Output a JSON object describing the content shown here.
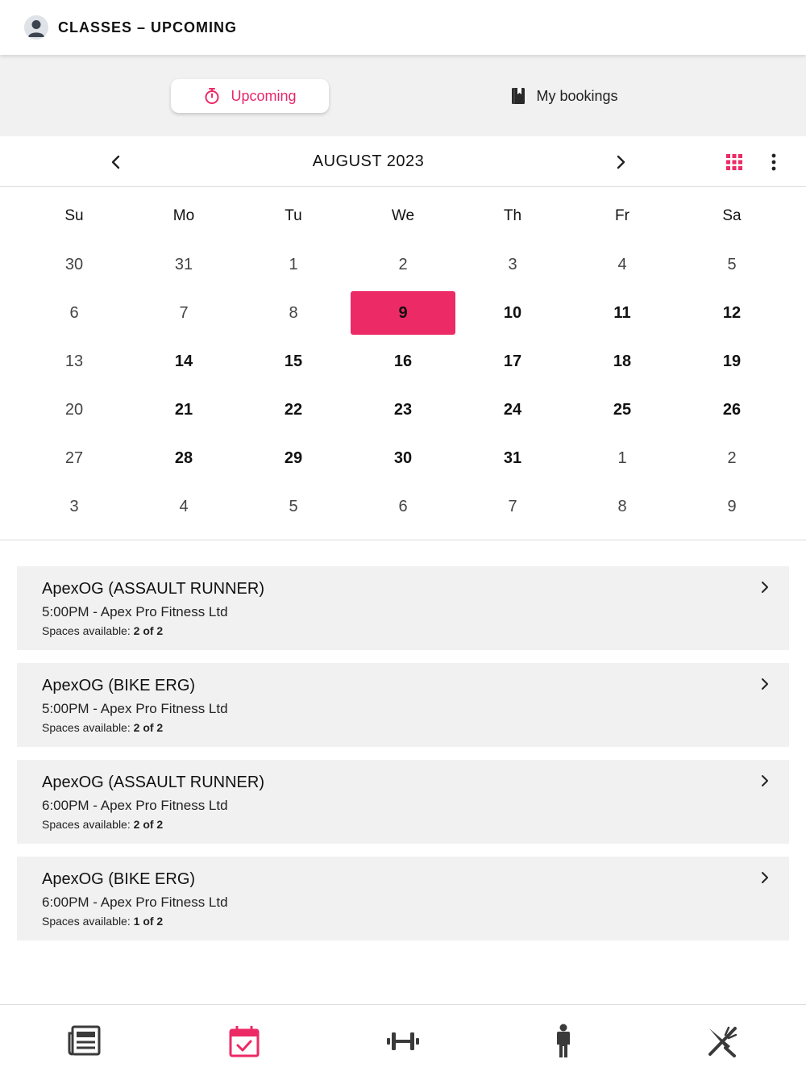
{
  "header": {
    "title": "CLASSES – UPCOMING"
  },
  "tabs": [
    {
      "label": "Upcoming",
      "icon": "stopwatch-icon",
      "active": true
    },
    {
      "label": "My bookings",
      "icon": "bookmark-book-icon",
      "active": false
    }
  ],
  "calendar": {
    "month_label": "AUGUST 2023",
    "weekdays": [
      "Su",
      "Mo",
      "Tu",
      "We",
      "Th",
      "Fr",
      "Sa"
    ],
    "weeks": [
      [
        {
          "d": "30",
          "s": "muted"
        },
        {
          "d": "31",
          "s": "muted"
        },
        {
          "d": "1",
          "s": "muted"
        },
        {
          "d": "2",
          "s": "muted"
        },
        {
          "d": "3",
          "s": "muted"
        },
        {
          "d": "4",
          "s": "muted"
        },
        {
          "d": "5",
          "s": "muted"
        }
      ],
      [
        {
          "d": "6",
          "s": "muted"
        },
        {
          "d": "7",
          "s": "muted"
        },
        {
          "d": "8",
          "s": "muted"
        },
        {
          "d": "9",
          "s": "selected"
        },
        {
          "d": "10",
          "s": "bold"
        },
        {
          "d": "11",
          "s": "bold"
        },
        {
          "d": "12",
          "s": "bold"
        }
      ],
      [
        {
          "d": "13",
          "s": "muted"
        },
        {
          "d": "14",
          "s": "bold"
        },
        {
          "d": "15",
          "s": "bold"
        },
        {
          "d": "16",
          "s": "bold"
        },
        {
          "d": "17",
          "s": "bold"
        },
        {
          "d": "18",
          "s": "bold"
        },
        {
          "d": "19",
          "s": "bold"
        }
      ],
      [
        {
          "d": "20",
          "s": "muted"
        },
        {
          "d": "21",
          "s": "bold"
        },
        {
          "d": "22",
          "s": "bold"
        },
        {
          "d": "23",
          "s": "bold"
        },
        {
          "d": "24",
          "s": "bold"
        },
        {
          "d": "25",
          "s": "bold"
        },
        {
          "d": "26",
          "s": "bold"
        }
      ],
      [
        {
          "d": "27",
          "s": "muted"
        },
        {
          "d": "28",
          "s": "bold"
        },
        {
          "d": "29",
          "s": "bold"
        },
        {
          "d": "30",
          "s": "bold"
        },
        {
          "d": "31",
          "s": "bold"
        },
        {
          "d": "1",
          "s": "muted"
        },
        {
          "d": "2",
          "s": "muted"
        }
      ],
      [
        {
          "d": "3",
          "s": "muted"
        },
        {
          "d": "4",
          "s": "muted"
        },
        {
          "d": "5",
          "s": "muted"
        },
        {
          "d": "6",
          "s": "muted"
        },
        {
          "d": "7",
          "s": "muted"
        },
        {
          "d": "8",
          "s": "muted"
        },
        {
          "d": "9",
          "s": "muted"
        }
      ]
    ]
  },
  "classes": [
    {
      "name": "ApexOG (ASSAULT RUNNER)",
      "time_location": "5:00PM - Apex Pro Fitness Ltd",
      "spaces_label": "Spaces available:",
      "spaces_value": "2 of 2"
    },
    {
      "name": "ApexOG (BIKE ERG)",
      "time_location": "5:00PM - Apex Pro Fitness Ltd",
      "spaces_label": "Spaces available:",
      "spaces_value": "2 of 2"
    },
    {
      "name": "ApexOG (ASSAULT RUNNER)",
      "time_location": "6:00PM - Apex Pro Fitness Ltd",
      "spaces_label": "Spaces available:",
      "spaces_value": "2 of 2"
    },
    {
      "name": "ApexOG (BIKE ERG)",
      "time_location": "6:00PM - Apex Pro Fitness Ltd",
      "spaces_label": "Spaces available:",
      "spaces_value": "1 of 2"
    }
  ],
  "bottom_nav": [
    {
      "icon": "newspaper-icon",
      "active": false
    },
    {
      "icon": "calendar-check-icon",
      "active": true
    },
    {
      "icon": "dumbbell-icon",
      "active": false
    },
    {
      "icon": "person-icon",
      "active": false
    },
    {
      "icon": "fork-knife-icon",
      "active": false
    }
  ],
  "colors": {
    "accent": "#ec2a66",
    "tab_bg": "#f1f1f1",
    "icon_dark": "#3a3a3a"
  }
}
